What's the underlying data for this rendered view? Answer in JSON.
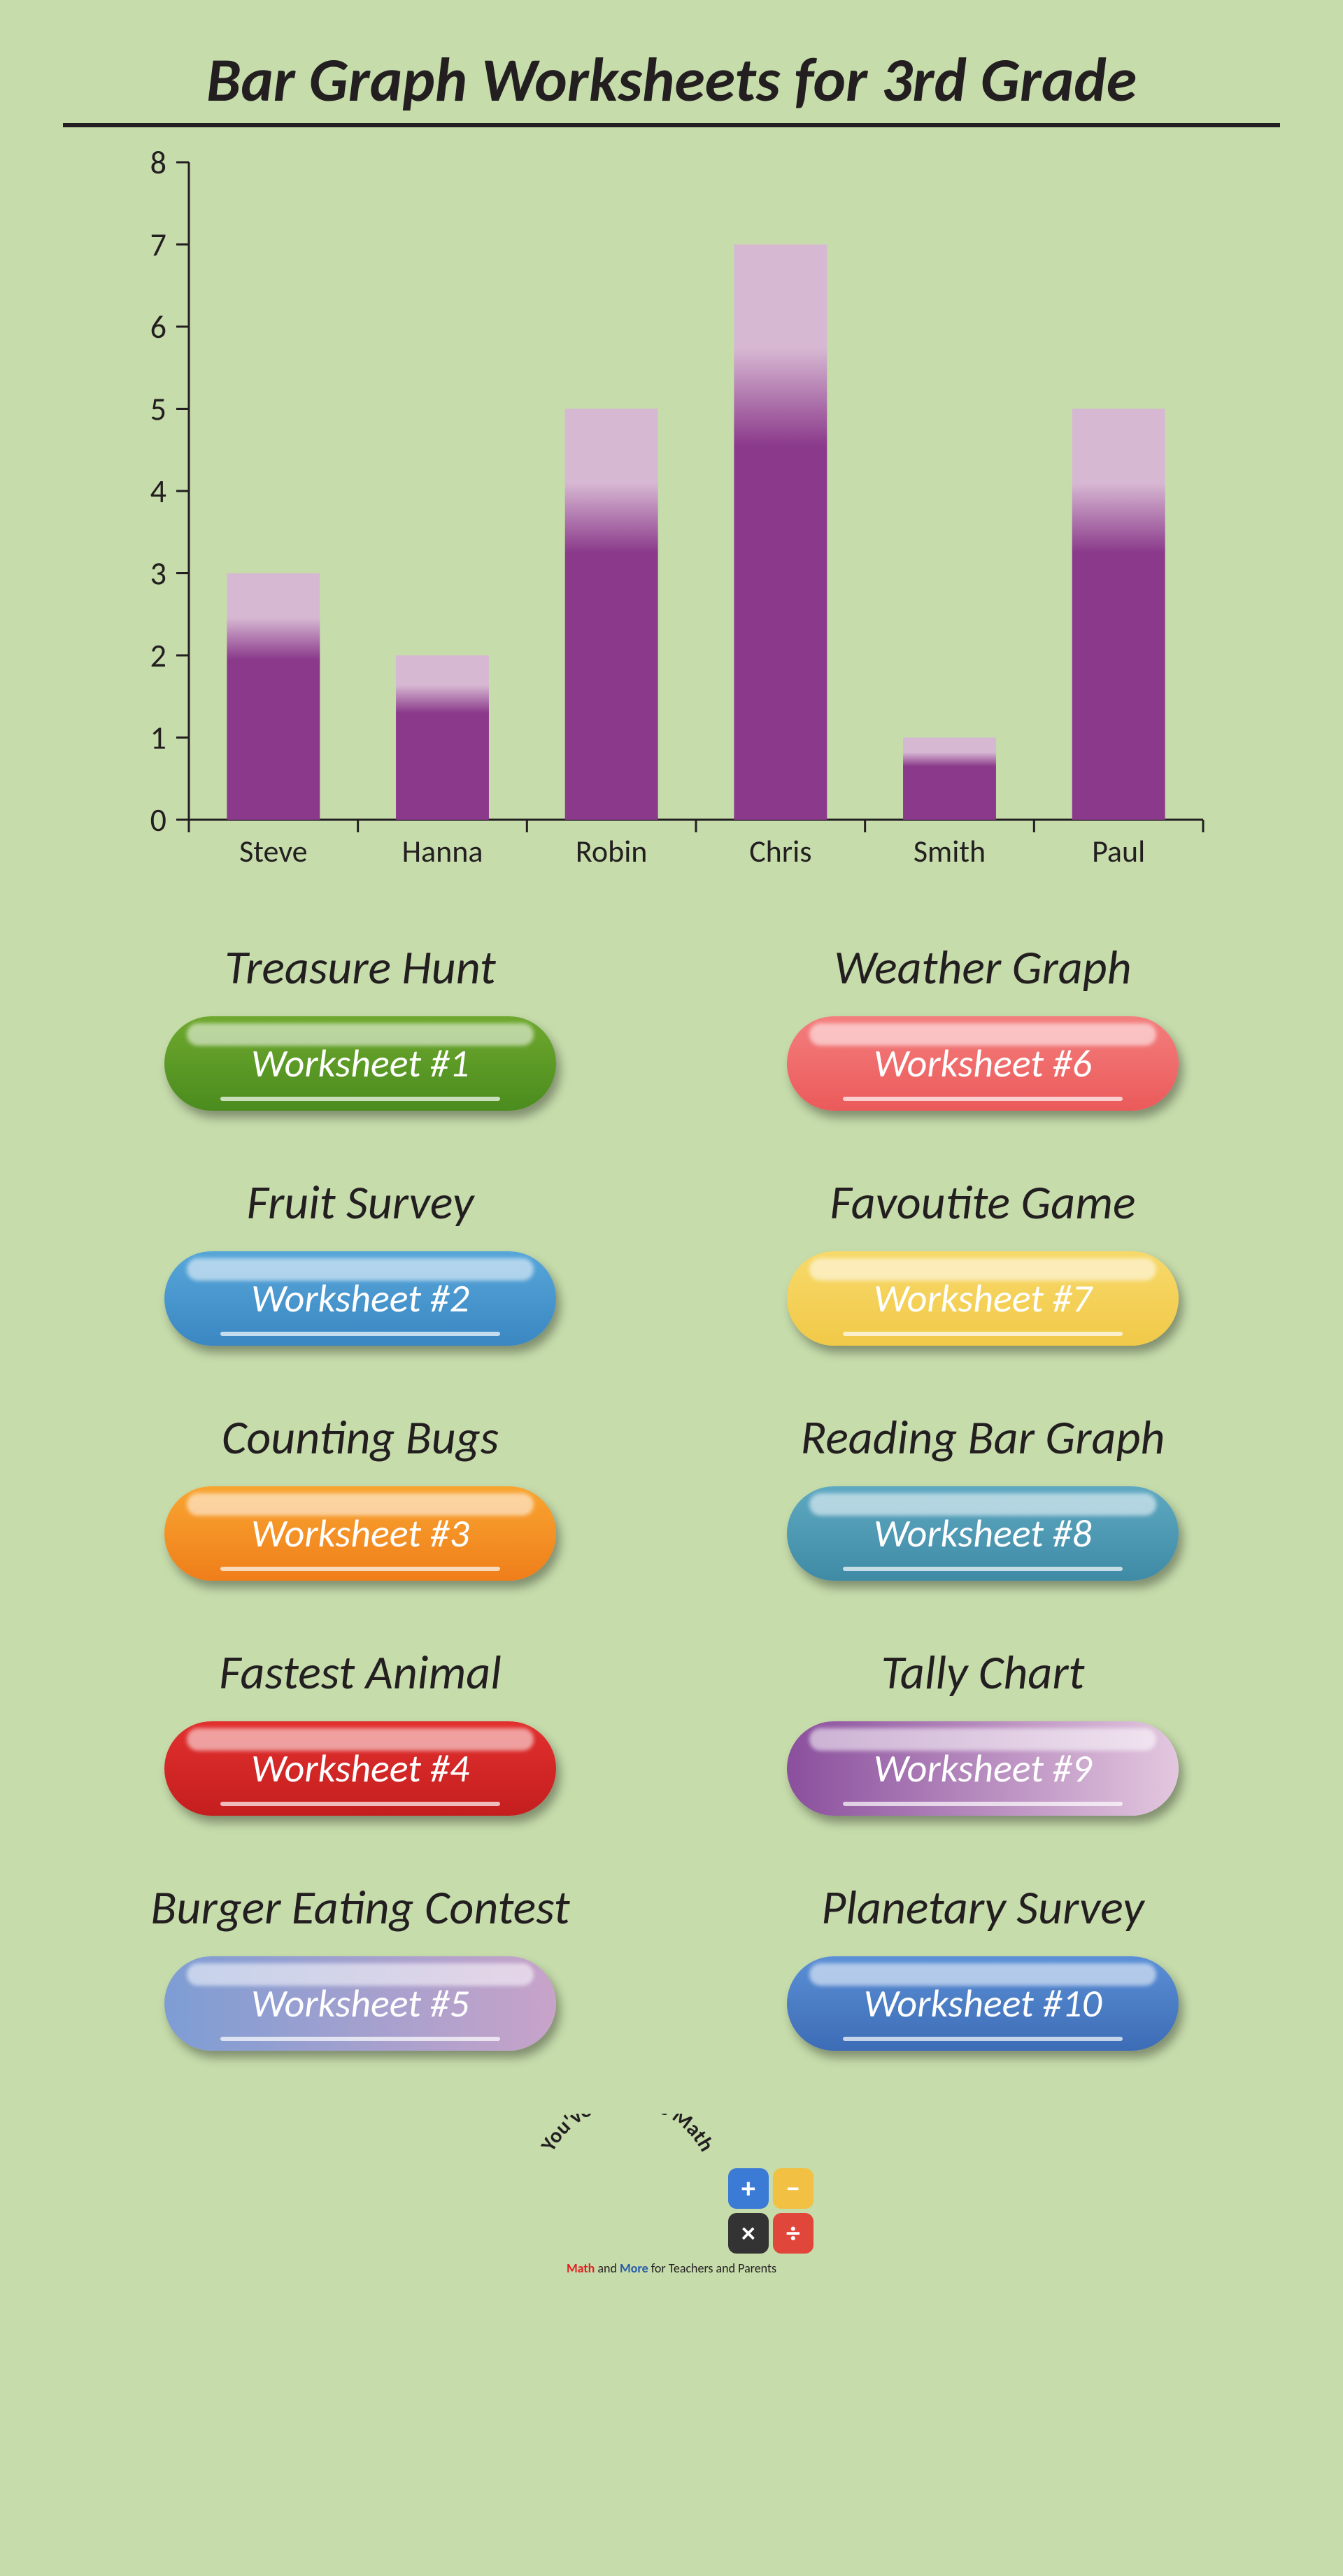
{
  "title": "Bar Graph Worksheets for 3rd Grade",
  "chart": {
    "type": "bar",
    "categories": [
      "Steve",
      "Hanna",
      "Robin",
      "Chris",
      "Smith",
      "Paul"
    ],
    "values": [
      3,
      2,
      5,
      7,
      1,
      5
    ],
    "ylim": [
      0,
      8
    ],
    "ytick_step": 1,
    "bar_main_color": "#8b3a8b",
    "bar_top_color": "#d7b8d3",
    "axis_color": "#231f20",
    "axis_width": 3,
    "tick_len": 18,
    "bar_width": 0.55,
    "label_fontsize": 44,
    "axis_fontsize": 46,
    "background": "#c6dcab"
  },
  "buttons": [
    {
      "title": "Treasure Hunt",
      "label": "Worksheet #1",
      "bg": "linear-gradient(180deg,#6fa82e,#4a8c1e)"
    },
    {
      "title": "Weather Graph",
      "label": "Worksheet #6",
      "bg": "linear-gradient(180deg,#f47e7e,#eb5a5a)"
    },
    {
      "title": "Fruit Survey",
      "label": "Worksheet #2",
      "bg": "linear-gradient(180deg,#57a6d9,#3a87c2)"
    },
    {
      "title": "Favoutite Game",
      "label": "Worksheet #7",
      "bg": "linear-gradient(180deg,#f7d96a,#f1c948)"
    },
    {
      "title": "Counting Bugs",
      "label": "Worksheet #3",
      "bg": "linear-gradient(180deg,#f9a531,#ef7e1a)"
    },
    {
      "title": "Reading Bar Graph",
      "label": "Worksheet #8",
      "bg": "linear-gradient(180deg,#5ea8c1,#3f8aa5)"
    },
    {
      "title": "Fastest Animal",
      "label": "Worksheet #4",
      "bg": "linear-gradient(180deg,#e2302f,#c41e1e)"
    },
    {
      "title": "Tally Chart",
      "label": "Worksheet #9",
      "bg": "linear-gradient(90deg,#8a4f9d,#e3c7df)"
    },
    {
      "title": "Burger Eating Contest",
      "label": "Worksheet #5",
      "bg": "linear-gradient(90deg,#7d9dd4,#c8a3c9)"
    },
    {
      "title": "Planetary Survey",
      "label": "Worksheet #10",
      "bg": "linear-gradient(180deg,#5b8fd6,#3c6cb5)"
    }
  ],
  "footer": {
    "arc": "You've Got This Math",
    "tiles": [
      {
        "sym": "+",
        "bg": "#3b7bd6"
      },
      {
        "sym": "−",
        "bg": "#f2c042"
      },
      {
        "sym": "×",
        "bg": "#333333"
      },
      {
        "sym": "÷",
        "bg": "#e0463a"
      }
    ],
    "tagline_a": "Math",
    "tagline_b": " and ",
    "tagline_c": "More",
    "tagline_d": " for Teachers and Parents"
  }
}
